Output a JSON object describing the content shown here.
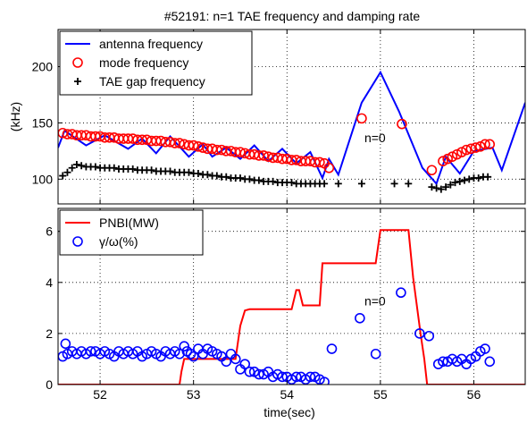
{
  "title": "#52191: n=1 TAE frequency and damping rate",
  "xlabel": "time(sec)",
  "chart_data": [
    {
      "type": "line",
      "title": "#52191: n=1 TAE frequency and damping rate",
      "ylabel": "(kHz)",
      "xlim": [
        51.55,
        56.55
      ],
      "ylim": [
        78,
        233
      ],
      "xticks": [
        52,
        53,
        54,
        55,
        56
      ],
      "yticks": [
        100,
        150,
        200
      ],
      "grid": true,
      "legend": "top-left",
      "annotation": {
        "text": "n=0",
        "x": 54.8,
        "y": 133
      },
      "series": [
        {
          "name": "antenna frequency",
          "style": "line",
          "color": "#0000ff",
          "x": [
            51.55,
            51.62,
            51.85,
            52.05,
            52.3,
            52.45,
            52.6,
            52.75,
            52.95,
            53.1,
            53.2,
            53.35,
            53.5,
            53.65,
            53.8,
            53.95,
            54.1,
            54.25,
            54.38,
            54.45,
            54.55,
            54.8,
            55.0,
            55.2,
            55.45,
            55.6,
            55.7,
            55.85,
            56.0,
            56.2,
            56.3,
            56.55
          ],
          "y": [
            128,
            143,
            130,
            139,
            127,
            136,
            123,
            138,
            120,
            131,
            120,
            128,
            118,
            130,
            116,
            127,
            114,
            124,
            101,
            118,
            104,
            168,
            195,
            160,
            110,
            96,
            120,
            105,
            125,
            128,
            108,
            168
          ]
        },
        {
          "name": "mode frequency",
          "style": "marker-circle",
          "color": "#ff0000",
          "x": [
            51.6,
            51.65,
            51.7,
            51.75,
            51.8,
            51.85,
            51.9,
            51.95,
            52.0,
            52.05,
            52.1,
            52.15,
            52.2,
            52.25,
            52.3,
            52.35,
            52.4,
            52.45,
            52.5,
            52.55,
            52.6,
            52.65,
            52.7,
            52.75,
            52.8,
            52.85,
            52.9,
            52.95,
            53.0,
            53.05,
            53.1,
            53.15,
            53.2,
            53.25,
            53.3,
            53.35,
            53.4,
            53.45,
            53.5,
            53.55,
            53.6,
            53.65,
            53.7,
            53.75,
            53.8,
            53.85,
            53.9,
            53.95,
            54.0,
            54.05,
            54.1,
            54.15,
            54.2,
            54.25,
            54.3,
            54.35,
            54.4,
            54.45,
            54.8,
            55.23,
            55.55,
            55.67,
            55.72,
            55.77,
            55.82,
            55.87,
            55.92,
            55.97,
            56.02,
            56.07,
            56.12,
            56.17
          ],
          "y": [
            141,
            140,
            140,
            139,
            139,
            139,
            138,
            138,
            138,
            137,
            137,
            137,
            136,
            136,
            136,
            136,
            135,
            135,
            135,
            134,
            134,
            134,
            133,
            133,
            132,
            132,
            131,
            130,
            130,
            129,
            128,
            127,
            127,
            126,
            126,
            125,
            125,
            124,
            124,
            123,
            122,
            122,
            121,
            121,
            120,
            119,
            119,
            118,
            118,
            117,
            117,
            116,
            116,
            116,
            115,
            115,
            114,
            110,
            154,
            149,
            108,
            116,
            118,
            120,
            122,
            124,
            126,
            127,
            128,
            129,
            131,
            131
          ]
        },
        {
          "name": "TAE gap frequency",
          "style": "marker-plus",
          "color": "#000000",
          "x": [
            51.6,
            51.65,
            51.7,
            51.75,
            51.8,
            51.85,
            51.9,
            51.95,
            52.0,
            52.05,
            52.1,
            52.15,
            52.2,
            52.25,
            52.3,
            52.35,
            52.4,
            52.45,
            52.5,
            52.55,
            52.6,
            52.65,
            52.7,
            52.75,
            52.8,
            52.85,
            52.9,
            52.95,
            53.0,
            53.05,
            53.1,
            53.15,
            53.2,
            53.25,
            53.3,
            53.35,
            53.4,
            53.45,
            53.5,
            53.55,
            53.6,
            53.65,
            53.7,
            53.75,
            53.8,
            53.85,
            53.9,
            53.95,
            54.0,
            54.05,
            54.1,
            54.15,
            54.2,
            54.25,
            54.3,
            54.35,
            54.4,
            54.55,
            54.8,
            55.15,
            55.3,
            55.55,
            55.6,
            55.65,
            55.7,
            55.75,
            55.8,
            55.85,
            55.9,
            55.95,
            56.0,
            56.05,
            56.1,
            56.15
          ],
          "y": [
            103,
            106,
            110,
            113,
            112,
            111,
            111,
            111,
            110,
            110,
            110,
            110,
            109,
            109,
            109,
            109,
            108,
            108,
            108,
            108,
            107,
            107,
            107,
            107,
            106,
            106,
            106,
            106,
            105,
            105,
            104,
            104,
            103,
            103,
            102,
            102,
            101,
            101,
            101,
            100,
            100,
            99,
            99,
            98,
            98,
            98,
            97,
            97,
            97,
            97,
            96,
            96,
            96,
            96,
            96,
            96,
            96,
            96,
            96,
            96,
            96,
            93,
            92,
            91,
            93,
            95,
            97,
            98,
            99,
            100,
            101,
            101,
            102,
            102
          ]
        }
      ]
    },
    {
      "type": "line",
      "xlabel": "time(sec)",
      "xlim": [
        51.55,
        56.55
      ],
      "ylim": [
        0,
        6.9
      ],
      "xticks": [
        52,
        53,
        54,
        55,
        56
      ],
      "yticks": [
        0,
        2,
        4,
        6
      ],
      "grid": true,
      "legend": "top-left",
      "annotation": {
        "text": "n=0",
        "x": 54.8,
        "y": 3.1
      },
      "series": [
        {
          "name": "PNBI(MW)",
          "style": "line",
          "color": "#ff0000",
          "x": [
            51.55,
            52.85,
            52.87,
            52.9,
            52.95,
            53.45,
            53.5,
            53.55,
            53.6,
            54.05,
            54.1,
            54.13,
            54.17,
            54.35,
            54.38,
            54.95,
            55.0,
            55.05,
            55.3,
            55.35,
            55.43,
            55.47,
            55.5,
            56.55
          ],
          "y": [
            0,
            0,
            0.5,
            1.0,
            1.0,
            1.0,
            2.3,
            2.9,
            2.95,
            2.95,
            3.7,
            3.7,
            3.1,
            3.1,
            4.75,
            4.75,
            6.05,
            6.05,
            6.05,
            4.2,
            2.0,
            1.0,
            0,
            0
          ]
        },
        {
          "name": "γ/ω(%)",
          "style": "marker-circle",
          "color": "#0000ff",
          "x": [
            51.6,
            51.63,
            51.65,
            51.7,
            51.75,
            51.8,
            51.85,
            51.9,
            51.95,
            52.0,
            52.05,
            52.1,
            52.15,
            52.2,
            52.25,
            52.3,
            52.35,
            52.4,
            52.45,
            52.5,
            52.55,
            52.6,
            52.65,
            52.7,
            52.75,
            52.8,
            52.85,
            52.9,
            52.93,
            52.97,
            53.0,
            53.05,
            53.1,
            53.15,
            53.2,
            53.25,
            53.3,
            53.35,
            53.4,
            53.45,
            53.5,
            53.55,
            53.6,
            53.65,
            53.7,
            53.75,
            53.8,
            53.85,
            53.9,
            53.95,
            54.0,
            54.05,
            54.1,
            54.15,
            54.2,
            54.25,
            54.3,
            54.35,
            54.4,
            54.48,
            54.78,
            54.95,
            55.22,
            55.42,
            55.52,
            55.62,
            55.67,
            55.72,
            55.77,
            55.82,
            55.87,
            55.92,
            55.97,
            56.02,
            56.07,
            56.12,
            56.17
          ],
          "y": [
            1.1,
            1.6,
            1.2,
            1.3,
            1.2,
            1.3,
            1.2,
            1.3,
            1.3,
            1.2,
            1.3,
            1.2,
            1.1,
            1.3,
            1.2,
            1.3,
            1.2,
            1.3,
            1.1,
            1.2,
            1.3,
            1.2,
            1.1,
            1.3,
            1.2,
            1.3,
            1.2,
            1.5,
            1.3,
            1.2,
            1.1,
            1.4,
            1.2,
            1.4,
            1.3,
            1.2,
            1.1,
            0.9,
            1.2,
            1.0,
            0.6,
            0.8,
            0.5,
            0.5,
            0.4,
            0.4,
            0.5,
            0.3,
            0.4,
            0.3,
            0.3,
            0.2,
            0.3,
            0.3,
            0.2,
            0.3,
            0.3,
            0.2,
            0.1,
            1.4,
            2.6,
            1.2,
            3.6,
            2.0,
            1.9,
            0.8,
            0.9,
            0.9,
            1.0,
            0.9,
            1.0,
            0.8,
            1.0,
            1.1,
            1.3,
            1.4,
            0.9
          ]
        }
      ]
    }
  ]
}
